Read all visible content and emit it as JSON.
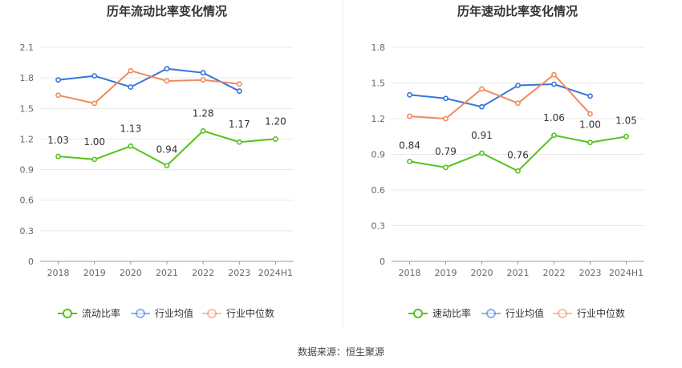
{
  "colors": {
    "company": "#52c41a",
    "industry_avg": "#3575e0",
    "industry_median": "#f08a5d",
    "grid": "#e8e8e8",
    "axis": "#999999",
    "divider": "#eeeeee"
  },
  "source_text": "数据来源：恒生聚源",
  "chart_data": [
    {
      "type": "line",
      "title": "历年流动比率变化情况",
      "categories": [
        "2018",
        "2019",
        "2020",
        "2021",
        "2022",
        "2023",
        "2024H1"
      ],
      "ylim": [
        0,
        2.1
      ],
      "yticks": [
        "0",
        "0.3",
        "0.6",
        "0.9",
        "1.2",
        "1.5",
        "1.8",
        "2.1"
      ],
      "grid": true,
      "legend_position": "bottom",
      "series": [
        {
          "name": "流动比率",
          "key": "company",
          "values": [
            1.03,
            1.0,
            1.13,
            0.94,
            1.28,
            1.17,
            1.2
          ],
          "labels": [
            "1.03",
            "1.00",
            "1.13",
            "0.94",
            "1.28",
            "1.17",
            "1.20"
          ]
        },
        {
          "name": "行业均值",
          "key": "industry_avg",
          "values": [
            1.78,
            1.82,
            1.71,
            1.89,
            1.85,
            1.67,
            null
          ]
        },
        {
          "name": "行业中位数",
          "key": "industry_median",
          "values": [
            1.63,
            1.55,
            1.87,
            1.77,
            1.78,
            1.74,
            null
          ]
        }
      ]
    },
    {
      "type": "line",
      "title": "历年速动比率变化情况",
      "categories": [
        "2018",
        "2019",
        "2020",
        "2021",
        "2022",
        "2023",
        "2024H1"
      ],
      "ylim": [
        0,
        1.8
      ],
      "yticks": [
        "0",
        "0.3",
        "0.6",
        "0.9",
        "1.2",
        "1.5",
        "1.8"
      ],
      "grid": true,
      "legend_position": "bottom",
      "series": [
        {
          "name": "速动比率",
          "key": "company",
          "values": [
            0.84,
            0.79,
            0.91,
            0.76,
            1.06,
            1.0,
            1.05
          ],
          "labels": [
            "0.84",
            "0.79",
            "0.91",
            "0.76",
            "1.06",
            "1.00",
            "1.05"
          ]
        },
        {
          "name": "行业均值",
          "key": "industry_avg",
          "values": [
            1.4,
            1.37,
            1.3,
            1.48,
            1.49,
            1.39,
            null
          ]
        },
        {
          "name": "行业中位数",
          "key": "industry_median",
          "values": [
            1.22,
            1.2,
            1.45,
            1.33,
            1.57,
            1.24,
            null
          ]
        }
      ]
    }
  ]
}
